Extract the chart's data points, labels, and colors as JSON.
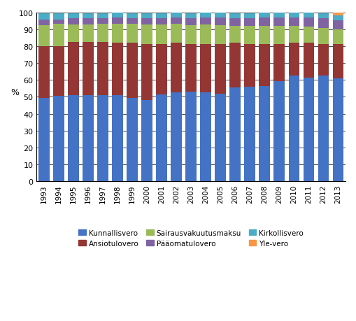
{
  "years": [
    1993,
    1994,
    1995,
    1996,
    1997,
    1998,
    1999,
    2000,
    2001,
    2002,
    2003,
    2004,
    2005,
    2006,
    2007,
    2008,
    2009,
    2010,
    2011,
    2012,
    2013
  ],
  "series": {
    "Kunnallisvero": [
      49.5,
      50.5,
      51.0,
      51.0,
      51.0,
      51.0,
      49.5,
      48.0,
      51.5,
      52.5,
      53.0,
      52.5,
      52.0,
      55.5,
      56.0,
      56.5,
      59.5,
      62.5,
      61.5,
      62.5,
      61.0
    ],
    "Ansiotulovero": [
      30.5,
      29.5,
      31.5,
      31.5,
      31.5,
      31.0,
      32.5,
      33.5,
      30.0,
      29.5,
      28.5,
      29.0,
      29.5,
      26.5,
      25.5,
      25.0,
      22.0,
      19.5,
      20.5,
      19.0,
      20.5
    ],
    "Sairausvakuutusmaksu": [
      12.5,
      13.5,
      10.5,
      10.5,
      11.0,
      11.5,
      11.5,
      11.5,
      11.5,
      11.5,
      11.0,
      11.5,
      11.0,
      10.0,
      10.5,
      10.5,
      10.5,
      10.0,
      9.5,
      9.5,
      8.5
    ],
    "Pääomatulovero": [
      3.5,
      2.5,
      3.5,
      3.5,
      3.0,
      3.5,
      3.0,
      3.5,
      3.5,
      3.5,
      4.0,
      4.0,
      4.5,
      4.5,
      4.5,
      5.0,
      5.0,
      5.0,
      5.5,
      5.5,
      5.5
    ],
    "Kirkollisvero": [
      3.5,
      3.5,
      3.0,
      3.0,
      3.0,
      3.0,
      3.0,
      3.0,
      3.0,
      3.0,
      3.0,
      3.0,
      3.0,
      3.0,
      3.0,
      3.0,
      3.0,
      3.0,
      3.0,
      3.0,
      3.0
    ],
    "Yle-vero": [
      0.0,
      0.0,
      0.0,
      0.0,
      0.0,
      0.0,
      0.0,
      0.0,
      0.0,
      0.0,
      0.0,
      0.0,
      0.0,
      0.0,
      0.0,
      0.0,
      0.0,
      0.0,
      0.0,
      0.0,
      1.5
    ]
  },
  "colors": {
    "Kunnallisvero": "#4472C4",
    "Ansiotulovero": "#943634",
    "Sairausvakuutusmaksu": "#9BBB59",
    "Pääomatulovero": "#8064A2",
    "Kirkollisvero": "#4BACC6",
    "Yle-vero": "#F79646"
  },
  "ylabel": "%",
  "ylim": [
    0,
    100
  ],
  "yticks": [
    0,
    10,
    20,
    30,
    40,
    50,
    60,
    70,
    80,
    90,
    100
  ],
  "background_color": "#FFFFFF",
  "grid_color": "#000000"
}
